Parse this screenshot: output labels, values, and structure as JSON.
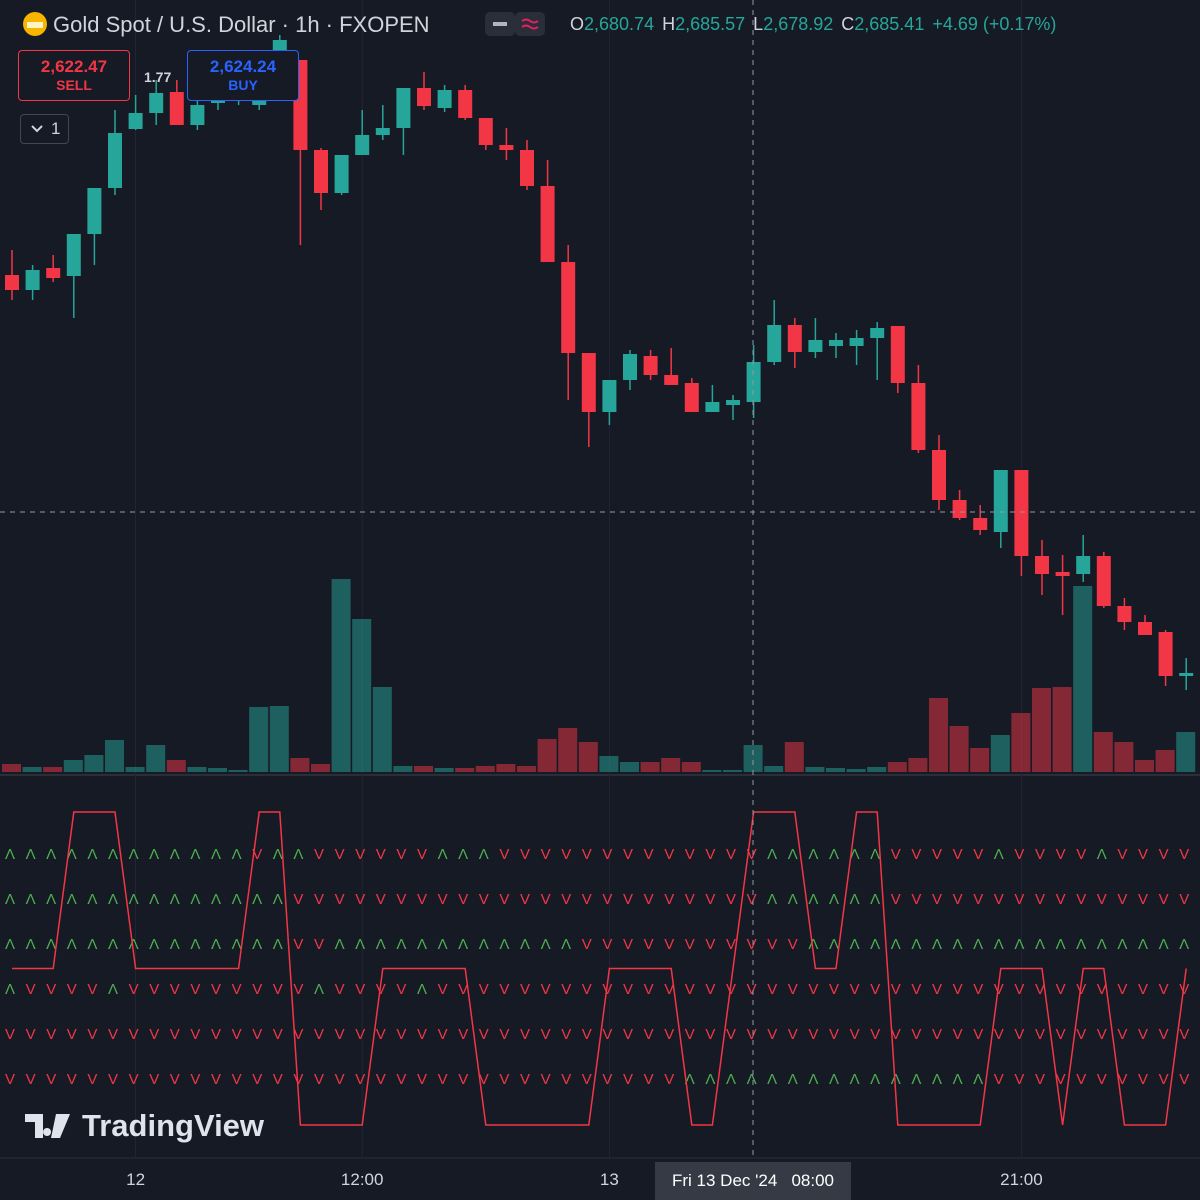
{
  "header": {
    "symbol": "Gold Spot / U.S. Dollar · 1h · FXOPEN",
    "o_label": "O",
    "open": "2,680.74",
    "h_label": "H",
    "high": "2,685.57",
    "l_label": "L",
    "low": "2,678.92",
    "c_label": "C",
    "close": "2,685.41",
    "change": "+4.69 (+0.17%)"
  },
  "trade": {
    "sell_price": "2,622.47",
    "sell": "SELL",
    "spread": "1.77",
    "buy_price": "2,624.24",
    "buy": "BUY"
  },
  "indicators_toggle": "1",
  "crosshair": {
    "date": "Fri 13 Dec '24",
    "time": "08:00"
  },
  "watermark": "TradingView",
  "chart_data": {
    "type": "candlestick",
    "up_color": "#26a69a",
    "down_color": "#f23645",
    "ylim": [
      2650,
      2722
    ],
    "categories": [
      null,
      null,
      null,
      null,
      null,
      null,
      "12",
      null,
      null,
      null,
      null,
      null,
      null,
      null,
      null,
      null,
      null,
      "12:00",
      null,
      null,
      null,
      null,
      null,
      null,
      null,
      null,
      null,
      null,
      null,
      "13",
      null,
      null,
      null,
      null,
      null,
      null,
      null,
      null,
      null,
      null,
      null,
      null,
      null,
      null,
      null,
      null,
      null,
      null,
      null,
      "21:00",
      null,
      null,
      null,
      null,
      null,
      null,
      null,
      null
    ],
    "open": [
      2694.5,
      2693,
      2695.2,
      2694.4,
      2698.6,
      2703.2,
      2709.1,
      2710.7,
      2712.8,
      2709.5,
      2711.7,
      2712,
      2711.5,
      2712.5,
      2716,
      2707,
      2702.7,
      2706.5,
      2708.5,
      2709.2,
      2713.2,
      2711.2,
      2713,
      2710.2,
      2707.5,
      2707,
      2703.4,
      2695.8,
      2686.7,
      2680.8,
      2684,
      2686.4,
      2684.5,
      2683.7,
      2680.8,
      2681.5,
      2681.8,
      2685.8,
      2689.5,
      2686.8,
      2687.4,
      2687.4,
      2688.2,
      2689.4,
      2683.7,
      2677,
      2672,
      2670.2,
      2668.8,
      2675,
      2666.4,
      2664.8,
      2664.6,
      2666.4,
      2661.4,
      2659.8,
      2658.8,
      2654.4
    ],
    "high": [
      2697,
      2695.5,
      2696.5,
      2698.6,
      2703.2,
      2711,
      2712.5,
      2714,
      2714,
      2712.5,
      2712.8,
      2712.8,
      2713,
      2718.5,
      2716,
      2707.2,
      2706.5,
      2711,
      2711.5,
      2713.2,
      2714.8,
      2713.5,
      2713.5,
      2710.2,
      2709.2,
      2708,
      2706,
      2697.5,
      2686.7,
      2684,
      2687,
      2687,
      2687.2,
      2684.2,
      2683.5,
      2682.5,
      2687.5,
      2692,
      2690.2,
      2690.2,
      2688.7,
      2689,
      2689.8,
      2689.4,
      2685.5,
      2678.5,
      2673,
      2671.5,
      2675,
      2675,
      2668,
      2666.5,
      2668.5,
      2666.8,
      2662.2,
      2660.5,
      2659,
      2656.2
    ],
    "low": [
      2692,
      2692,
      2693.8,
      2690.2,
      2695.5,
      2702.5,
      2709,
      2709.5,
      2709.5,
      2709,
      2711,
      2711.5,
      2711,
      2712,
      2697.5,
      2701,
      2702.5,
      2706.5,
      2708,
      2706.5,
      2711,
      2710.8,
      2710,
      2707,
      2706,
      2703,
      2695.8,
      2682,
      2677.3,
      2679.5,
      2683,
      2684,
      2683.5,
      2680.8,
      2680.8,
      2680,
      2680.2,
      2685.5,
      2685.2,
      2686.2,
      2686.2,
      2685.5,
      2684,
      2682.7,
      2676.7,
      2671,
      2670,
      2668.5,
      2667.2,
      2664.4,
      2662.5,
      2660.5,
      2663.8,
      2661.2,
      2659,
      2658.5,
      2653.4,
      2653
    ],
    "close": [
      2693,
      2695,
      2694.2,
      2698.6,
      2703.2,
      2708.7,
      2710.7,
      2712.7,
      2709.5,
      2711.5,
      2712.5,
      2712.5,
      2712.5,
      2718,
      2707,
      2702.7,
      2706.5,
      2708.5,
      2709.2,
      2713.2,
      2711.4,
      2713,
      2710.2,
      2707.5,
      2707,
      2703.4,
      2695.8,
      2686.7,
      2680.8,
      2684,
      2686.6,
      2684.5,
      2683.5,
      2680.8,
      2681.8,
      2682,
      2685.8,
      2689.5,
      2686.8,
      2688,
      2688,
      2688.2,
      2689.2,
      2683.7,
      2677,
      2672,
      2670.2,
      2669,
      2675,
      2666.4,
      2664.6,
      2664.4,
      2666.4,
      2661.4,
      2659.8,
      2658.5,
      2654.4,
      2654.7
    ],
    "volume": {
      "ylim": [
        0,
        2500
      ],
      "values": [
        80,
        50,
        50,
        120,
        170,
        320,
        50,
        270,
        120,
        50,
        40,
        20,
        650,
        660,
        140,
        80,
        1930,
        1530,
        850,
        60,
        60,
        40,
        40,
        60,
        80,
        60,
        330,
        440,
        300,
        160,
        100,
        100,
        140,
        100,
        20,
        20,
        270,
        60,
        300,
        50,
        40,
        30,
        50,
        100,
        140,
        740,
        460,
        240,
        370,
        590,
        840,
        850,
        1860,
        400,
        300,
        120,
        220,
        400
      ]
    },
    "indicator": {
      "ylim": [
        0,
        2
      ],
      "color": "#f23645",
      "up_color": "#4caf50",
      "down_color": "#f23645",
      "values": [
        1,
        1,
        1,
        2,
        2,
        2,
        1,
        1,
        1,
        1,
        1,
        1,
        2,
        2,
        0,
        0,
        0,
        0,
        1,
        1,
        1,
        1,
        1,
        0,
        0,
        0,
        0,
        0,
        0,
        1,
        1,
        1,
        1,
        0,
        0,
        1,
        2,
        2,
        2,
        1,
        1,
        2,
        2,
        0,
        0,
        0,
        0,
        0,
        1,
        1,
        1,
        0,
        1,
        1,
        0,
        0,
        0,
        1
      ],
      "rows": [
        "ΛΛΛΛΛΛΛΛΛΛΛΛVΛΛVVVVVVΛΛΛVVVVVVVVVVVVVΛΛΛΛΛΛVVVVVΛVVVVΛVVVV",
        "ΛΛΛΛΛΛΛΛΛΛΛΛΛΛVVVVVVVVVVVVVVVVVVVVVVVΛΛΛΛΛΛVVVVVVVVVVVVVVV",
        "ΛΛΛΛΛΛΛΛΛΛΛΛΛΛVVΛΛΛΛΛΛΛΛΛΛΛΛVVVVVVVVVVVΛΛΛΛΛΛΛΛΛΛΛΛΛΛΛΛΛΛΛ",
        "ΛVVVVΛVVVVVVVVVΛVVVVΛVVVVVVVVVVVVVVVVVVVVVVVVVVVVVVVVVVVVV",
        "VVVVVVVVVVVVVVVVVVVVVVVVVVVVVVVVVVVVVVVVVVVVVVVVVVVVVVVVVV",
        "VVVVVVVVVVVVVVVVVVVVVVVVVVVVVVVVVΛΛΛΛΛΛΛΛΛΛΛΛΛΛΛVVVVVVVVVV"
      ]
    }
  }
}
